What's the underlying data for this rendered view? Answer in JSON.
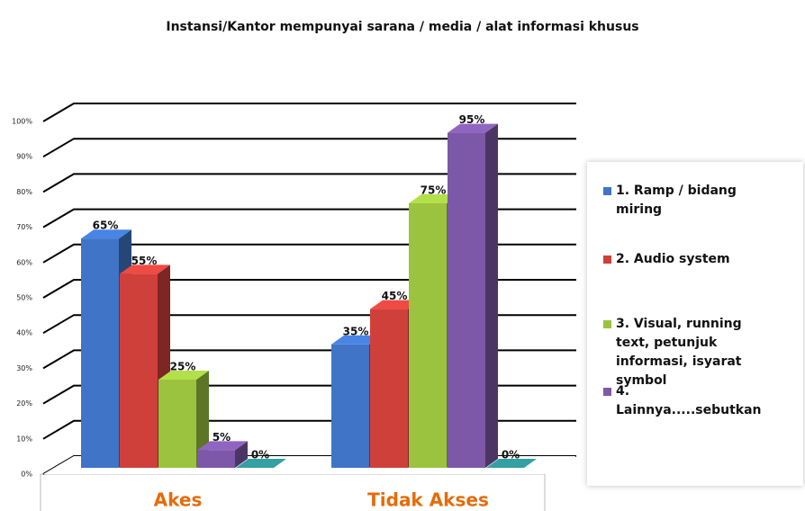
{
  "chart_data": {
    "type": "bar3d",
    "title": "Instansi/Kantor  mempunyai sarana / media / alat informasi khusus",
    "categories": [
      "Akes",
      "Tidak Akses"
    ],
    "series": [
      {
        "name": "1. Ramp / bidang miring",
        "color": "#3f74c6",
        "values": [
          65,
          35
        ],
        "value_labels": [
          "65%",
          "35%"
        ]
      },
      {
        "name": "2. Audio system",
        "color": "#d0403a",
        "values": [
          55,
          45
        ],
        "value_labels": [
          "55%",
          "45%"
        ]
      },
      {
        "name": "3. Visual, running text, petunjuk informasi, isyarat symbol",
        "color": "#9bc33f",
        "values": [
          25,
          75
        ],
        "value_labels": [
          "25%",
          "75%"
        ]
      },
      {
        "name": "4. Lainnya.....sebutkan",
        "color": "#7d58a8",
        "values": [
          5,
          95
        ],
        "value_labels": [
          "5%",
          "95%"
        ]
      },
      {
        "color": "#2e8b8f",
        "values": [
          0,
          0
        ],
        "value_labels": [
          "0%",
          "0%"
        ]
      }
    ],
    "ylim": [
      0,
      100
    ],
    "yticks": [
      {
        "value": 0,
        "label": "0%"
      },
      {
        "value": 10,
        "label": "10%"
      },
      {
        "value": 20,
        "label": "20%"
      },
      {
        "value": 30,
        "label": "30%"
      },
      {
        "value": 40,
        "label": "40%"
      },
      {
        "value": 50,
        "label": "50%"
      },
      {
        "value": 60,
        "label": "60%"
      },
      {
        "value": 70,
        "label": "70%"
      },
      {
        "value": 80,
        "label": "80%"
      },
      {
        "value": 90,
        "label": "90%"
      },
      {
        "value": 100,
        "label": "100%"
      }
    ],
    "grid": true
  }
}
